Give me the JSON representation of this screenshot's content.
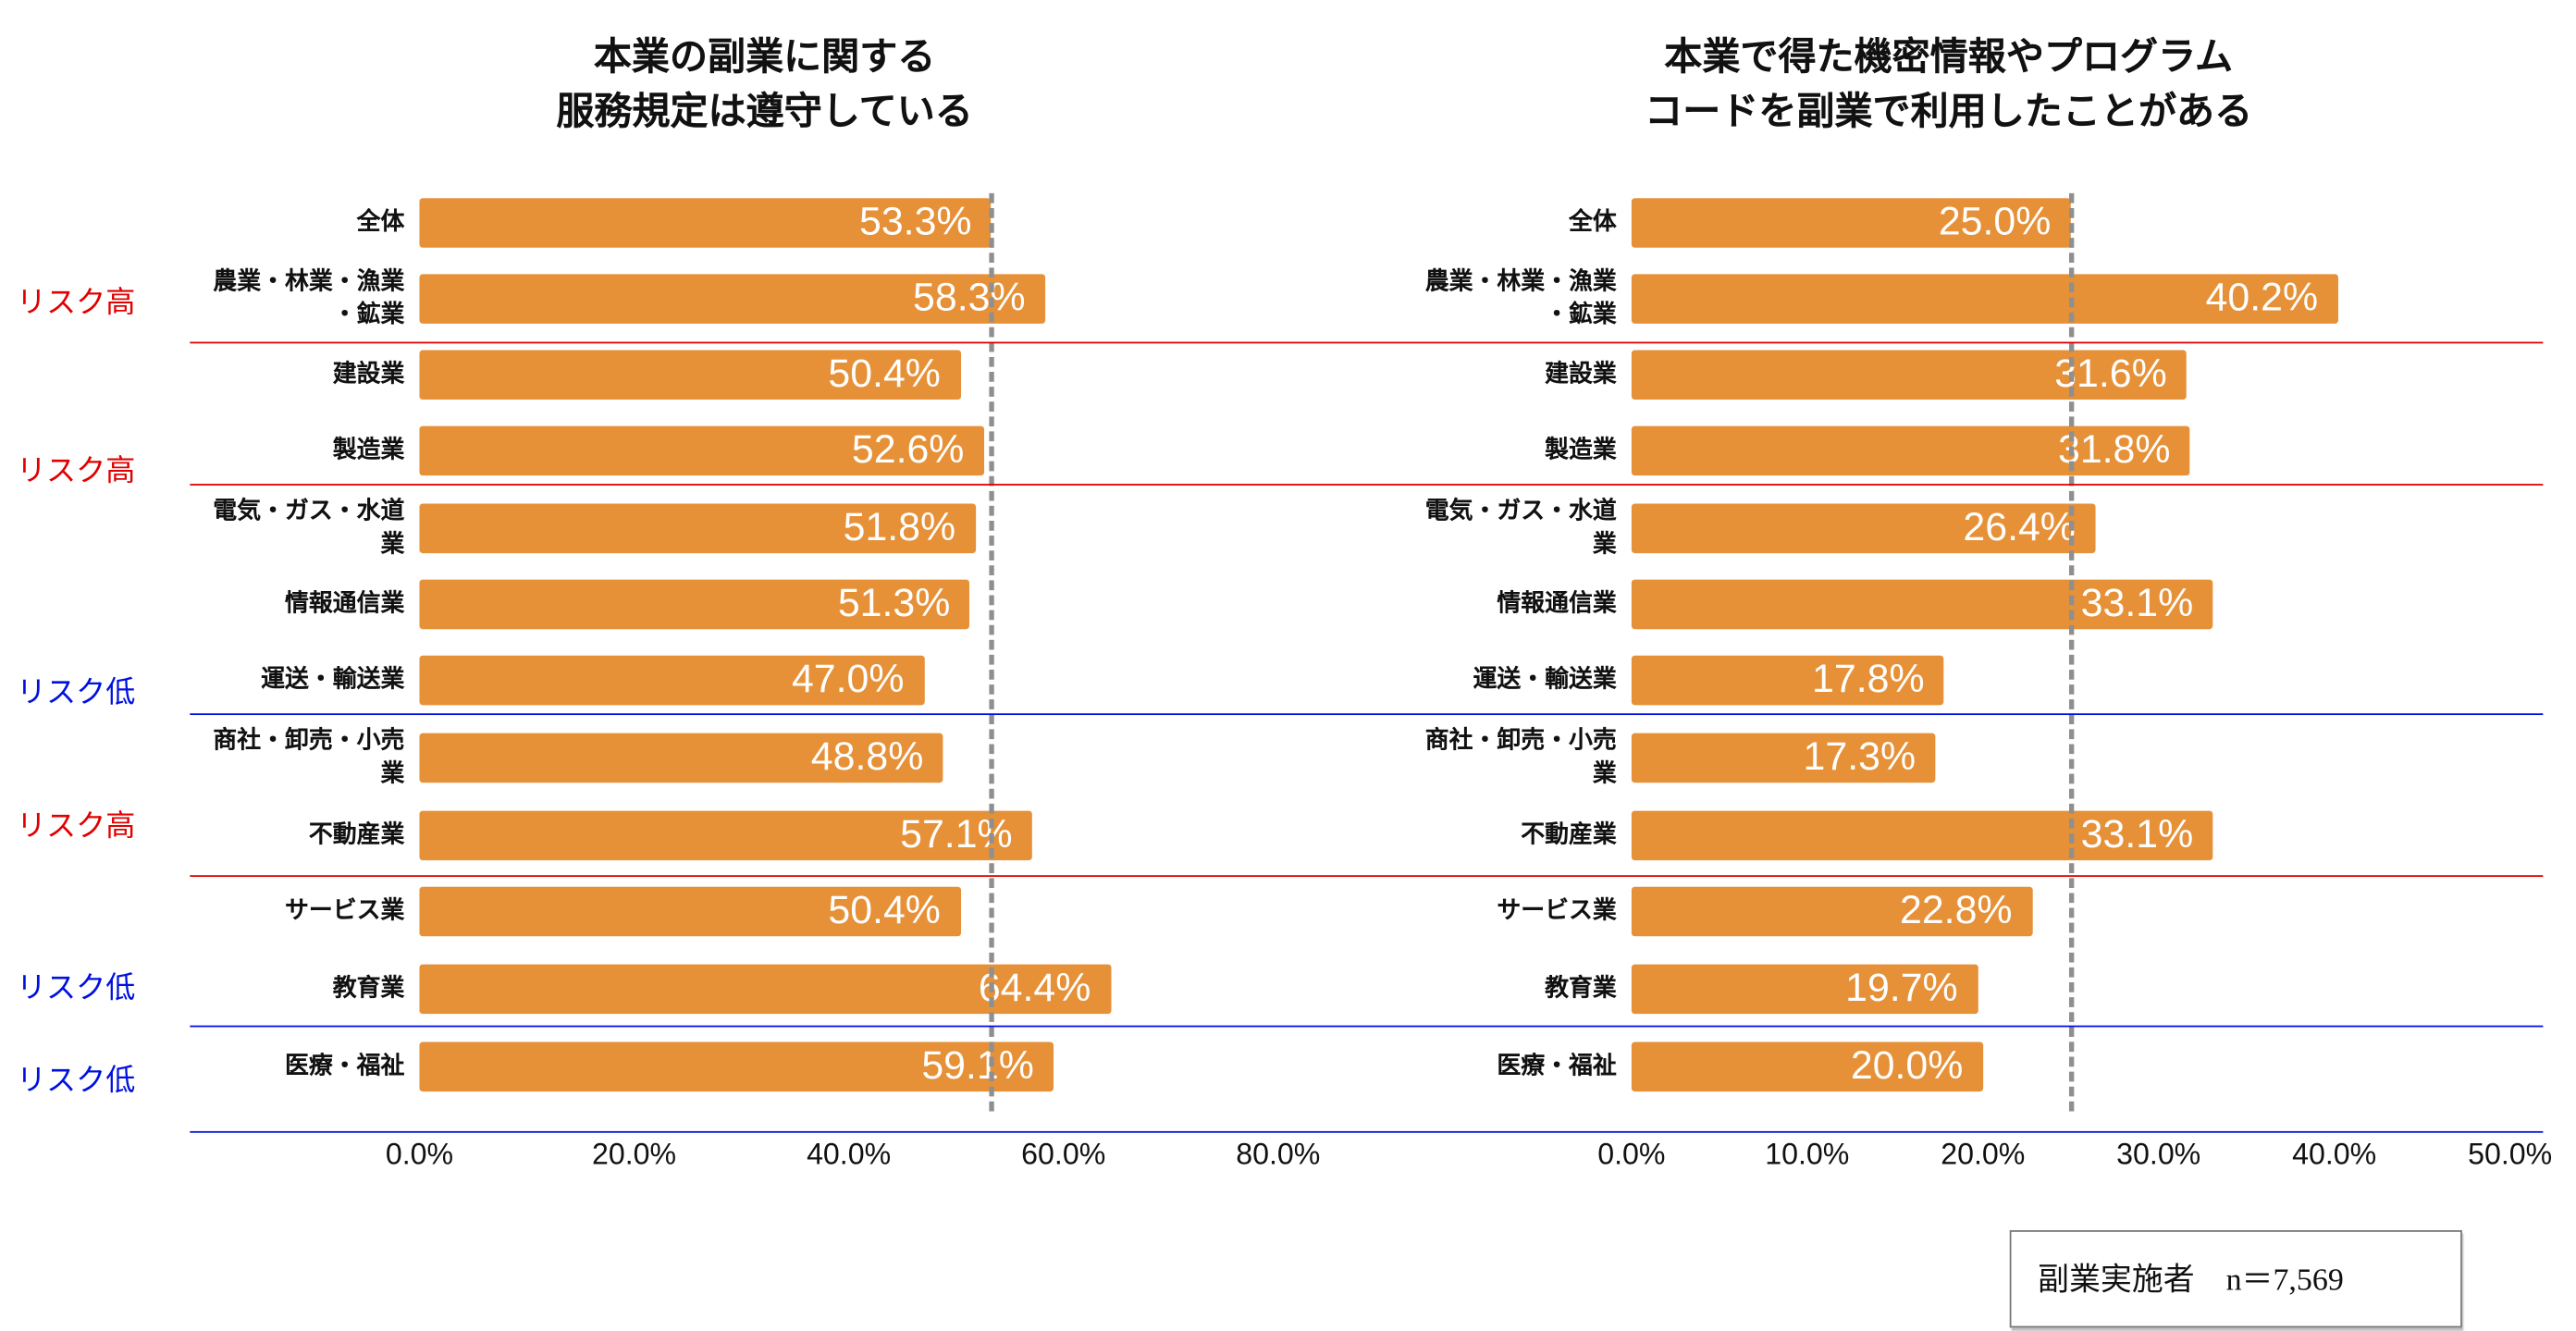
{
  "chart_data": [
    {
      "type": "bar",
      "orientation": "horizontal",
      "title": "本業の副業に関する\n服務規定は遵守している",
      "categories": [
        "全体",
        "農業・林業・漁業\n・鉱業",
        "建設業",
        "製造業",
        "電気・ガス・水道\n業",
        "情報通信業",
        "運送・輸送業",
        "商社・卸売・小売\n業",
        "不動産業",
        "サービス業",
        "教育業",
        "医療・福祉"
      ],
      "values": [
        53.3,
        58.3,
        50.4,
        52.6,
        51.8,
        51.3,
        47.0,
        48.8,
        57.1,
        50.4,
        64.4,
        59.1
      ],
      "value_labels": [
        "53.3%",
        "58.3%",
        "50.4%",
        "52.6%",
        "51.8%",
        "51.3%",
        "47.0%",
        "48.8%",
        "57.1%",
        "50.4%",
        "64.4%",
        "59.1%"
      ],
      "reference_line": 53.3,
      "xlim": [
        0,
        80
      ],
      "xticks": [
        "0.0%",
        "20.0%",
        "40.0%",
        "60.0%",
        "80.0%"
      ],
      "xtick_values": [
        0,
        20,
        40,
        60,
        80
      ],
      "grid": false,
      "bar_color": "#E69138"
    },
    {
      "type": "bar",
      "orientation": "horizontal",
      "title": "本業で得た機密情報やプログラム\nコードを副業で利用したことがある",
      "categories": [
        "全体",
        "農業・林業・漁業\n・鉱業",
        "建設業",
        "製造業",
        "電気・ガス・水道\n業",
        "情報通信業",
        "運送・輸送業",
        "商社・卸売・小売\n業",
        "不動産業",
        "サービス業",
        "教育業",
        "医療・福祉"
      ],
      "values": [
        25.0,
        40.2,
        31.6,
        31.8,
        26.4,
        33.1,
        17.8,
        17.3,
        33.1,
        22.8,
        19.7,
        20.0
      ],
      "value_labels": [
        "25.0%",
        "40.2%",
        "31.6%",
        "31.8%",
        "26.4%",
        "33.1%",
        "17.8%",
        "17.3%",
        "33.1%",
        "22.8%",
        "19.7%",
        "20.0%"
      ],
      "reference_line": 25.0,
      "xlim": [
        0,
        50
      ],
      "xticks": [
        "0.0%",
        "10.0%",
        "20.0%",
        "30.0%",
        "40.0%",
        "50.0%"
      ],
      "xtick_values": [
        0,
        10,
        20,
        30,
        40,
        50
      ],
      "grid": false,
      "bar_color": "#E69138"
    }
  ],
  "risk_annotations": [
    {
      "label": "リスク高",
      "color": "#E00000"
    },
    {
      "label": "リスク高",
      "color": "#E00000"
    },
    {
      "label": "リスク低",
      "color": "#0010E0"
    },
    {
      "label": "リスク高",
      "color": "#E00000"
    },
    {
      "label": "リスク低",
      "color": "#0010E0"
    },
    {
      "label": "リスク低",
      "color": "#0010E0"
    }
  ],
  "separator_colors": [
    "#E00000",
    "#E00000",
    "#0010E0",
    "#E00000",
    "#0010E0",
    "#0010E0"
  ],
  "legend": {
    "text": "副業実施者　n＝7,569"
  }
}
